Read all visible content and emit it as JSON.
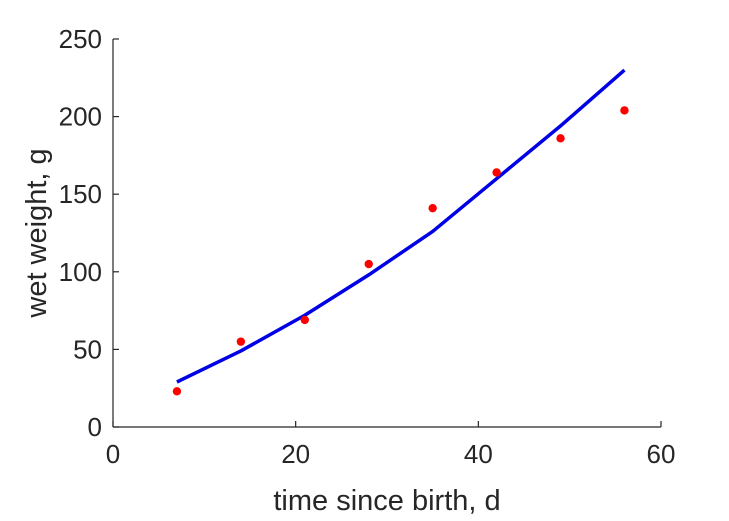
{
  "chart_data": {
    "type": "scatter",
    "title": "",
    "xlabel": "time since birth, d",
    "ylabel": "wet weight, g",
    "xlim": [
      0,
      60
    ],
    "ylim": [
      0,
      250
    ],
    "xticks": [
      0,
      20,
      40,
      60
    ],
    "yticks": [
      0,
      50,
      100,
      150,
      200,
      250
    ],
    "grid": false,
    "legend": "none",
    "series": [
      {
        "kind": "points",
        "color": "#ff0000",
        "x": [
          7,
          14,
          21,
          28,
          35,
          42,
          49,
          56
        ],
        "y": [
          23,
          55,
          69,
          105,
          141,
          164,
          186,
          204
        ]
      },
      {
        "kind": "line",
        "color": "#0000e6",
        "x": [
          7,
          14,
          21,
          28,
          35,
          42,
          49,
          56
        ],
        "y": [
          29,
          49,
          72,
          98,
          126,
          160,
          194,
          230
        ]
      }
    ]
  }
}
